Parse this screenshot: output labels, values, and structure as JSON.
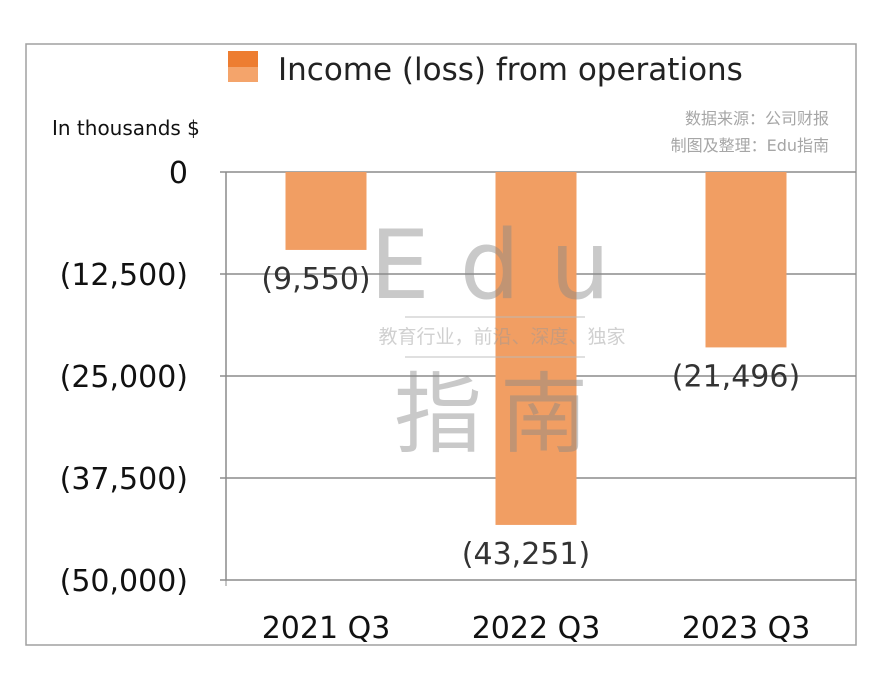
{
  "chart_data": {
    "type": "bar",
    "title": "",
    "legend": {
      "entries": [
        "Income (loss) from operations"
      ],
      "placement": "top"
    },
    "ylabel": "In thousands $",
    "xlabel": "",
    "categories": [
      "2021 Q3",
      "2022 Q3",
      "2023 Q3"
    ],
    "series": [
      {
        "name": "Income (loss) from operations",
        "values": [
          -9550,
          -43251,
          -21496
        ],
        "color": "#F19E63"
      }
    ],
    "data_labels": [
      "(9,550)",
      "(43,251)",
      "(21,496)"
    ],
    "ylim": [
      -50000,
      0
    ],
    "yticks": [
      0,
      -12500,
      -25000,
      -37500,
      -50000
    ],
    "ytick_labels": [
      "0",
      "(12,500)",
      "(25,000)",
      "(37,500)",
      "(50,000)"
    ],
    "grid": true
  },
  "source_note": [
    "数据来源：公司财报",
    "制图及整理：Edu指南"
  ],
  "watermark": {
    "line1": "Edu",
    "tagline": "教育行业，前沿、深度、独家",
    "line2": "指南"
  },
  "colors": {
    "bar": "#F19E63",
    "legend_top": "#ED7D31",
    "grid": "#8c8c8c",
    "note": "#a6a6a6"
  }
}
